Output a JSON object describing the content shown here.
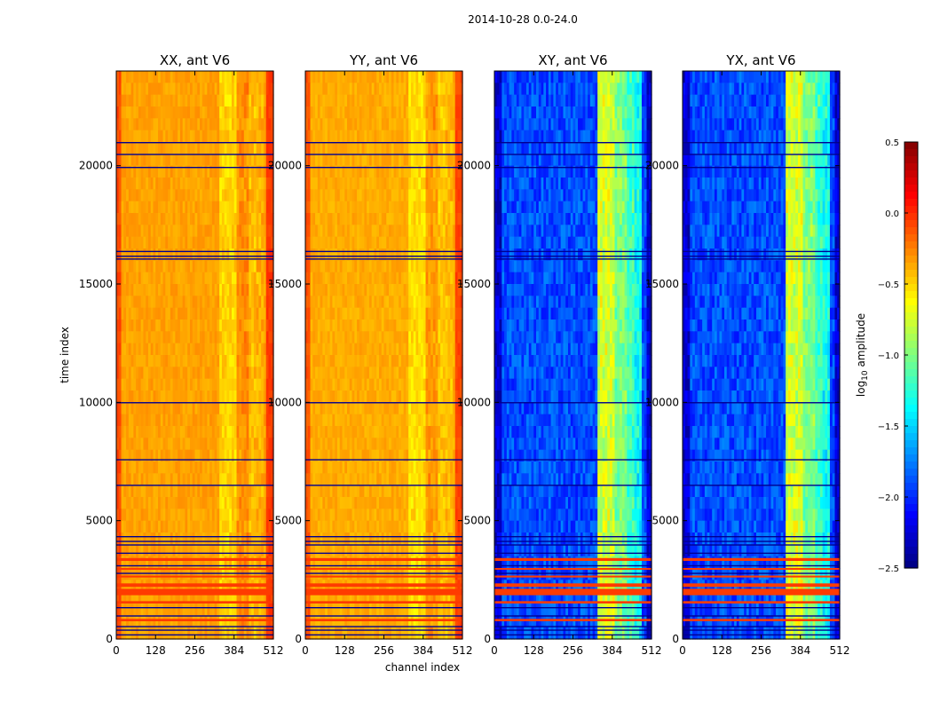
{
  "chart_data": {
    "type": "heatmap",
    "title": "2014-10-28 0.0-24.0",
    "xlabel": "channel index",
    "ylabel": "time index",
    "xlim": [
      0,
      512
    ],
    "ylim": [
      0,
      24000
    ],
    "x_ticks": [
      "0",
      "128",
      "256",
      "384",
      "512"
    ],
    "y_ticks": [
      "0",
      "5000",
      "10000",
      "15000",
      "20000"
    ],
    "panels": [
      {
        "title": "XX, ant V6",
        "base": -0.35,
        "kind": "parallel"
      },
      {
        "title": "YY, ant V6",
        "base": -0.38,
        "kind": "parallel"
      },
      {
        "title": "XY, ant V6",
        "base": -1.9,
        "kind": "cross"
      },
      {
        "title": "YX, ant V6",
        "base": -1.9,
        "kind": "cross"
      }
    ],
    "strong_bands": [
      {
        "label": "ch 336-390",
        "x_range": [
          336,
          390
        ],
        "delta_parallel": -0.15,
        "delta_cross": 1.15
      },
      {
        "label": "ch 390-430",
        "x_range": [
          390,
          430
        ],
        "delta_parallel": 0.05,
        "delta_cross": 0.9
      },
      {
        "label": "ch 430-455",
        "x_range": [
          430,
          455
        ],
        "delta_parallel": -0.08,
        "delta_cross": 0.7
      },
      {
        "label": "ch 455-480",
        "x_range": [
          455,
          480
        ],
        "delta_parallel": -0.05,
        "delta_cross": 0.55
      }
    ],
    "high_rows_time": [
      [
        3300,
        3420
      ],
      [
        2950,
        3000
      ],
      [
        2600,
        2680
      ],
      [
        2200,
        2350
      ],
      [
        1850,
        2120
      ],
      [
        1500,
        1600
      ],
      [
        750,
        850
      ]
    ],
    "low_rows_time": [
      21000,
      20500,
      19950,
      16400,
      16200,
      16080,
      10010,
      7600,
      6520,
      4350,
      4150,
      4000,
      3650,
      3120,
      2800,
      1350,
      1000,
      550,
      400,
      200
    ],
    "colorbar": {
      "label": "log10 amplitude",
      "range": [
        -2.5,
        0.5
      ],
      "ticks": [
        "0.5",
        "0.0",
        "−0.5",
        "−1.0",
        "−1.5",
        "−2.0",
        "−2.5"
      ],
      "colormap": "jet"
    }
  }
}
